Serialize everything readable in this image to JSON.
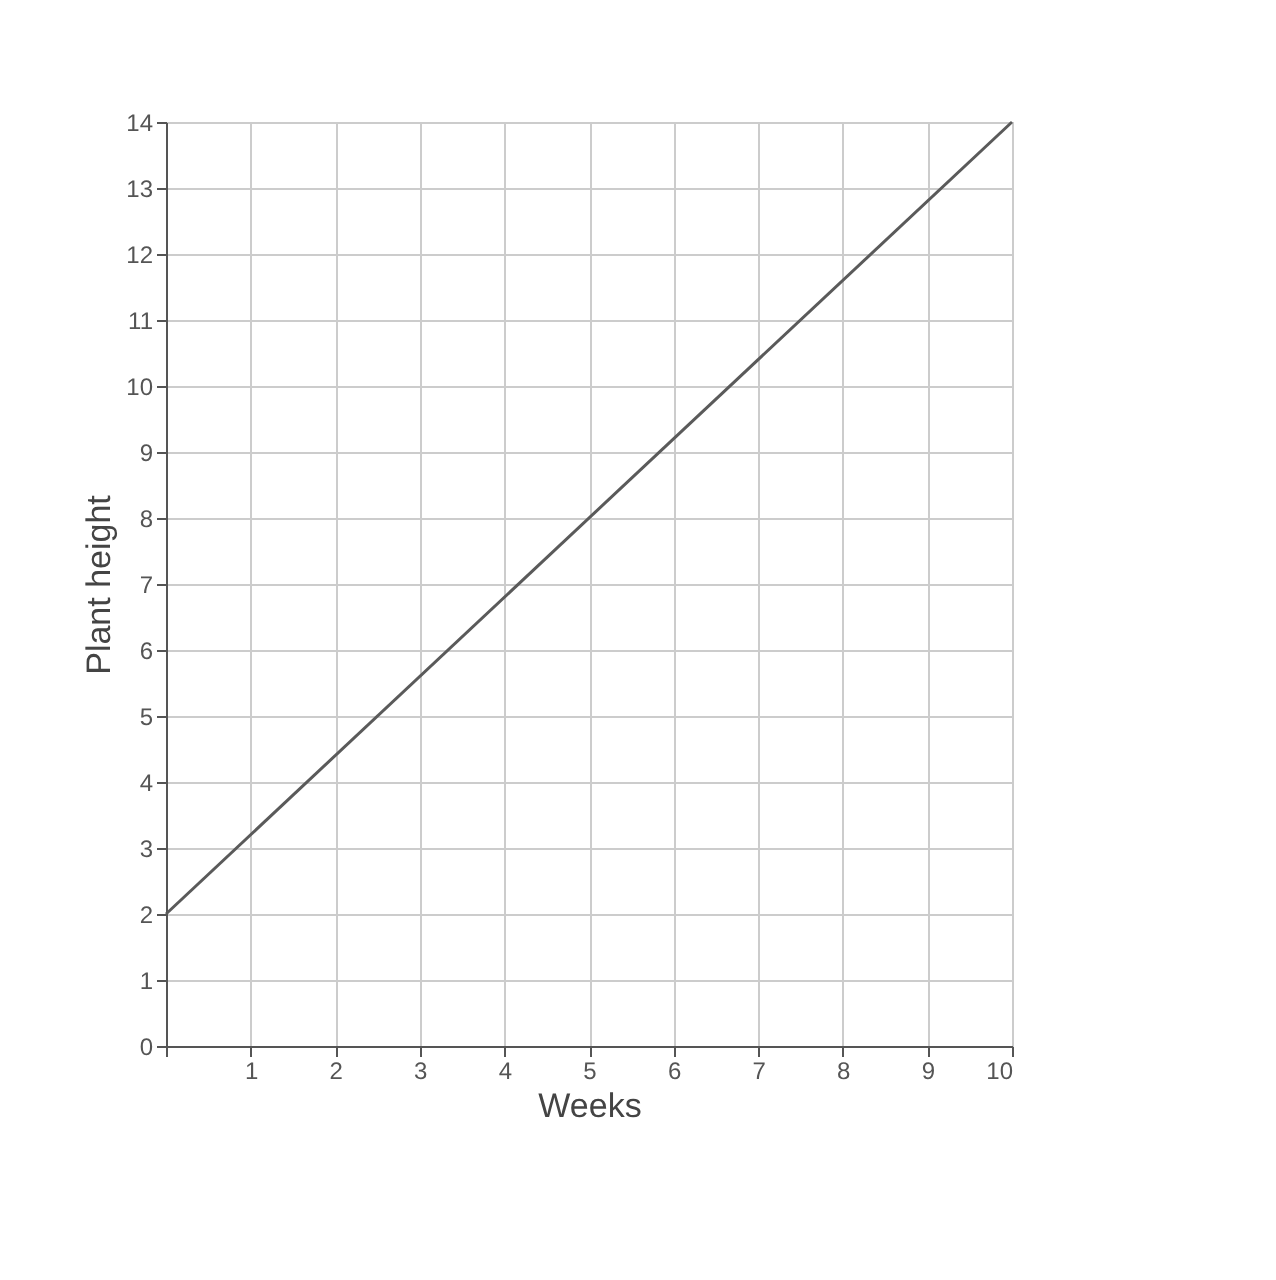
{
  "chart_data": {
    "type": "line",
    "xlabel": "Weeks",
    "ylabel": "Plant height",
    "x": [
      0,
      10
    ],
    "series": [
      {
        "color": "#5a5a5a",
        "values": [
          2,
          14
        ]
      }
    ],
    "xlim": [
      0,
      10
    ],
    "ylim": [
      0,
      14
    ],
    "xticks": [
      {
        "value": 0,
        "label": null
      },
      1,
      2,
      3,
      4,
      5,
      6,
      7,
      8,
      9,
      10
    ],
    "yticks": [
      0,
      1,
      2,
      3,
      4,
      5,
      6,
      7,
      8,
      9,
      10,
      11,
      12,
      13,
      14
    ],
    "grid": true,
    "marker": "none",
    "line_style": "solid"
  }
}
